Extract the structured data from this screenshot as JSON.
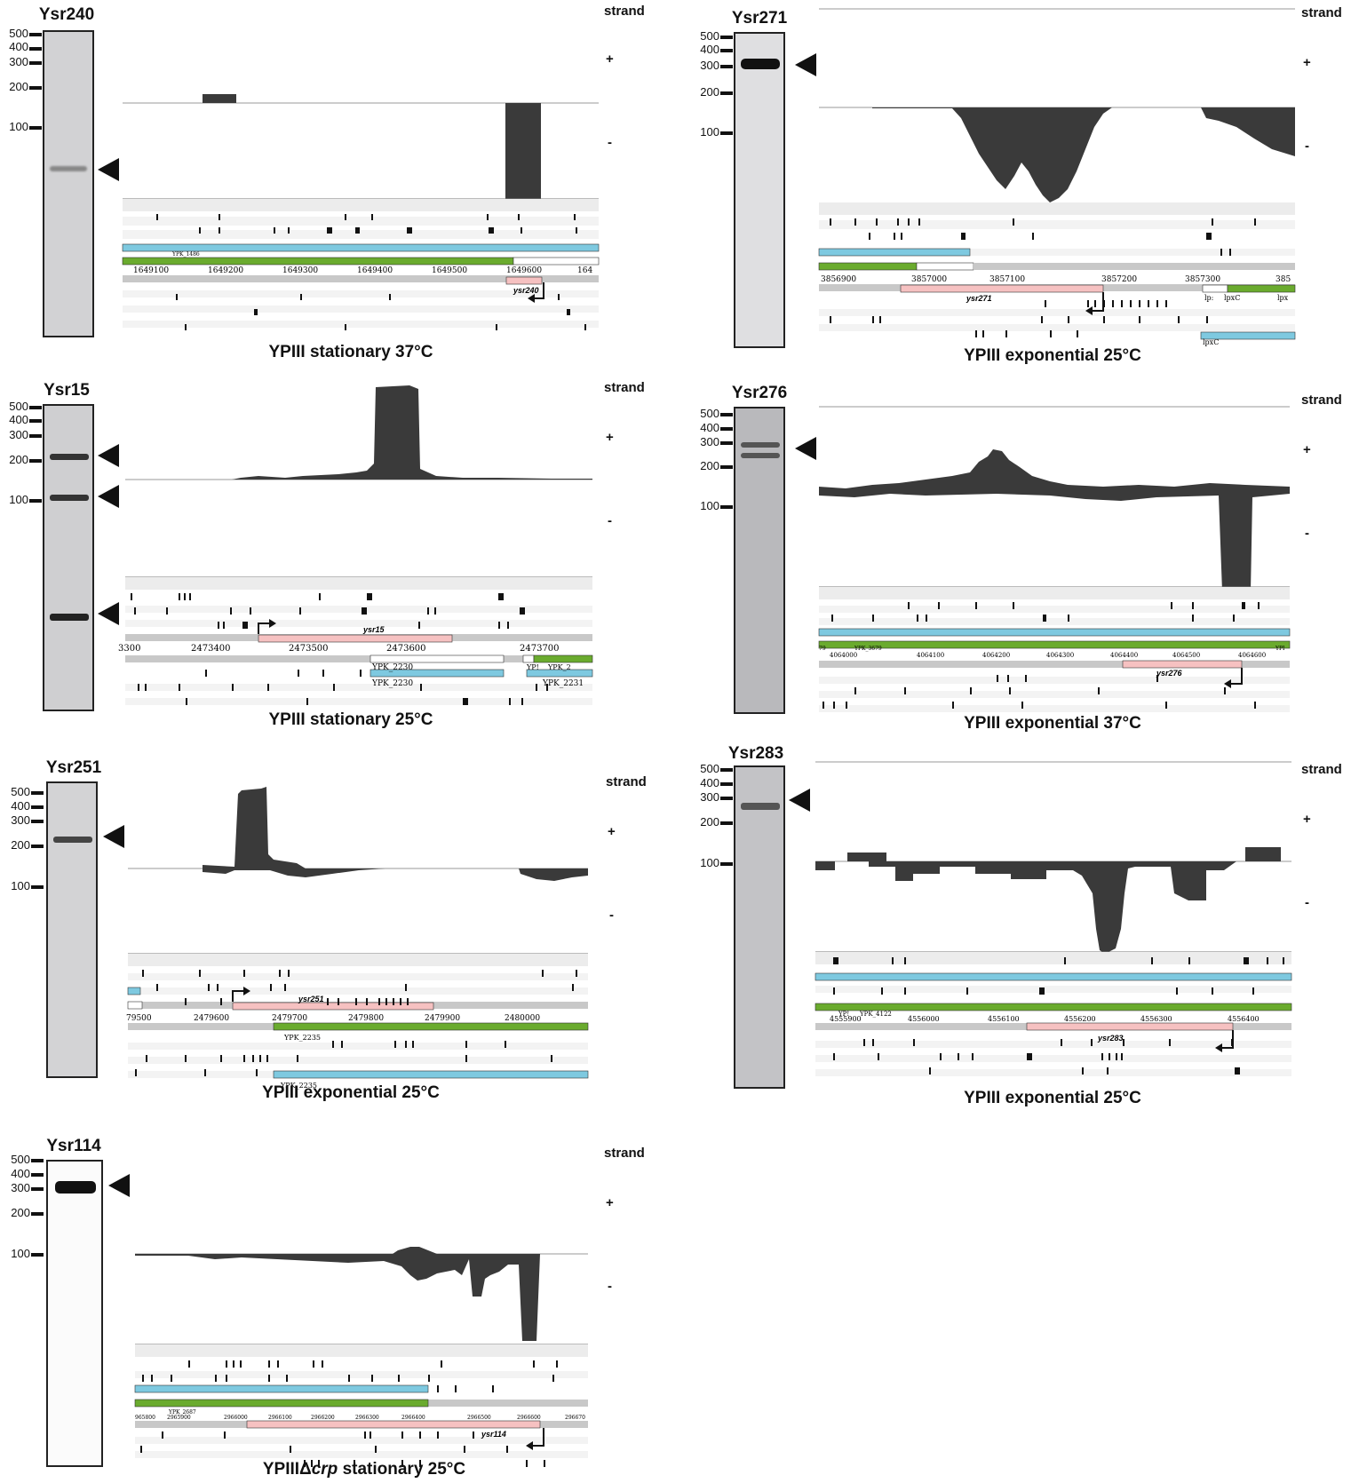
{
  "strand_labels": {
    "title": "strand",
    "plus": "+",
    "minus": "-"
  },
  "marker_labels": [
    "500",
    "400",
    "300",
    "200",
    "100"
  ],
  "colors": {
    "coverage": "#3a3a3a",
    "blue_gene": "#7ec9e0",
    "green_gene": "#6aab2e",
    "srna": "#f6c1c1",
    "track_bg": "#ececec",
    "track_bg2": "#f6f6f6"
  },
  "panels": [
    {
      "id": "ysr240",
      "blot_title": "Ysr240",
      "caption": "YPIII stationary 37°C",
      "coords": [
        "1649100",
        "1649200",
        "1649300",
        "1649400",
        "1649500",
        "1649600",
        "164"
      ],
      "gene_labels": [
        "YPK_1486"
      ],
      "srna_label": "ysr240"
    },
    {
      "id": "ysr271",
      "blot_title": "Ysr271",
      "caption": "YPIII exponential 25°C",
      "coords": [
        "3856900",
        "3857000",
        "3857100",
        "3857200",
        "3857300",
        "385"
      ],
      "gene_labels": [
        "lp:",
        "lpxC",
        "lpx",
        "lpxC"
      ],
      "srna_label": "ysr271"
    },
    {
      "id": "ysr15",
      "blot_title": "Ysr15",
      "caption": "YPIII stationary 25°C",
      "coords": [
        "3300",
        "2473400",
        "2473500",
        "2473600",
        "2473700"
      ],
      "gene_labels": [
        "YPK_2230",
        "YPK_2230",
        "YP!",
        "YPK_2",
        "YPK_2231"
      ],
      "srna_label": "ysr15"
    },
    {
      "id": "ysr276",
      "blot_title": "Ysr276",
      "caption": "YPIII exponential 37°C",
      "coords": [
        "79",
        "4064000",
        "4064100",
        "4064200",
        "4064300",
        "4064400",
        "4064500",
        "4064600"
      ],
      "gene_labels": [
        "YPK_3679",
        "YPI"
      ],
      "srna_label": "ysr276"
    },
    {
      "id": "ysr251",
      "blot_title": "Ysr251",
      "caption": "YPIII exponential 25°C",
      "coords": [
        "79500",
        "2479600",
        "2479700",
        "2479800",
        "2479900",
        "2480000"
      ],
      "gene_labels": [
        "YPK_2235",
        "YPK_2235"
      ],
      "srna_label": "ysr251"
    },
    {
      "id": "ysr283",
      "blot_title": "Ysr283",
      "caption": "YPIII exponential 25°C",
      "coords": [
        "4555900",
        "4556000",
        "4556100",
        "4556200",
        "4556300",
        "4556400"
      ],
      "gene_labels": [
        "YP!",
        "YPK_4122"
      ],
      "srna_label": "ysr283"
    },
    {
      "id": "ysr114",
      "blot_title": "Ysr114",
      "caption_prefix": "YPIIIΔ",
      "caption_italic": "crp",
      "caption_suffix": " stationary 25°C",
      "coords": [
        "965800",
        "2965900",
        "2966000",
        "2966100",
        "2966200",
        "2966300",
        "2966400",
        "2966500",
        "2966600",
        "296670"
      ],
      "gene_labels": [
        "YPK_2687"
      ],
      "srna_label": "ysr114"
    }
  ]
}
